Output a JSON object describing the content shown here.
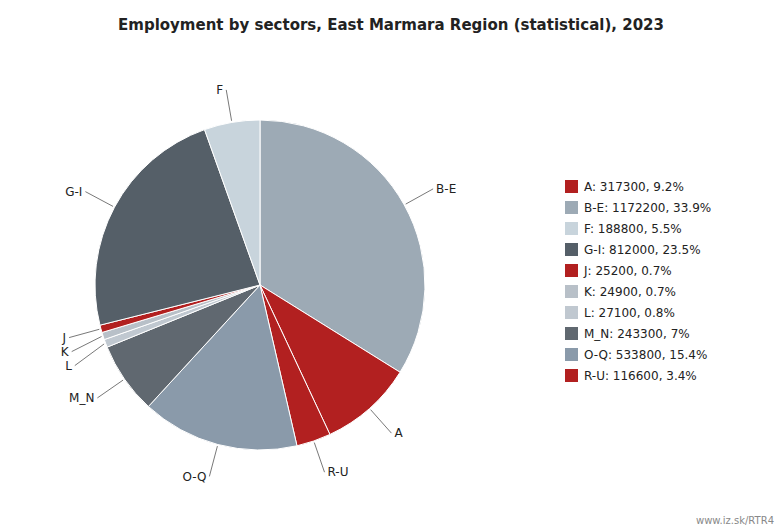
{
  "chart_data": {
    "type": "pie",
    "title": "Employment by sectors, East Marmara Region (statistical), 2023",
    "categories": [
      "B-E",
      "A",
      "R-U",
      "O-Q",
      "M_N",
      "L",
      "K",
      "J",
      "G-I",
      "F"
    ],
    "values": [
      1172200,
      317300,
      116600,
      533800,
      243300,
      27100,
      24900,
      25200,
      812000,
      188800
    ],
    "colors": [
      "#9daab5",
      "#b22020",
      "#b22020",
      "#8a9aaa",
      "#606870",
      "#c0c8d0",
      "#b8c0c8",
      "#b22020",
      "#555f68",
      "#c8d4dc"
    ],
    "legend": "right",
    "legend_labels": [
      "A: 317300, 9.2%",
      "B-E: 1172200, 33.9%",
      "F: 188800, 5.5%",
      "G-I: 812000, 23.5%",
      "J: 25200, 0.7%",
      "K: 24900, 0.7%",
      "L: 27100, 0.8%",
      "M_N: 243300, 7%",
      "O-Q: 533800, 15.4%",
      "R-U: 116600, 3.4%"
    ],
    "legend_colors": [
      "#b22020",
      "#9daab5",
      "#c8d4dc",
      "#555f68",
      "#b22020",
      "#b8c0c8",
      "#c0c8d0",
      "#606870",
      "#8a9aaa",
      "#b22020"
    ],
    "annotations": [
      "www.iz.sk/RTR4"
    ]
  }
}
